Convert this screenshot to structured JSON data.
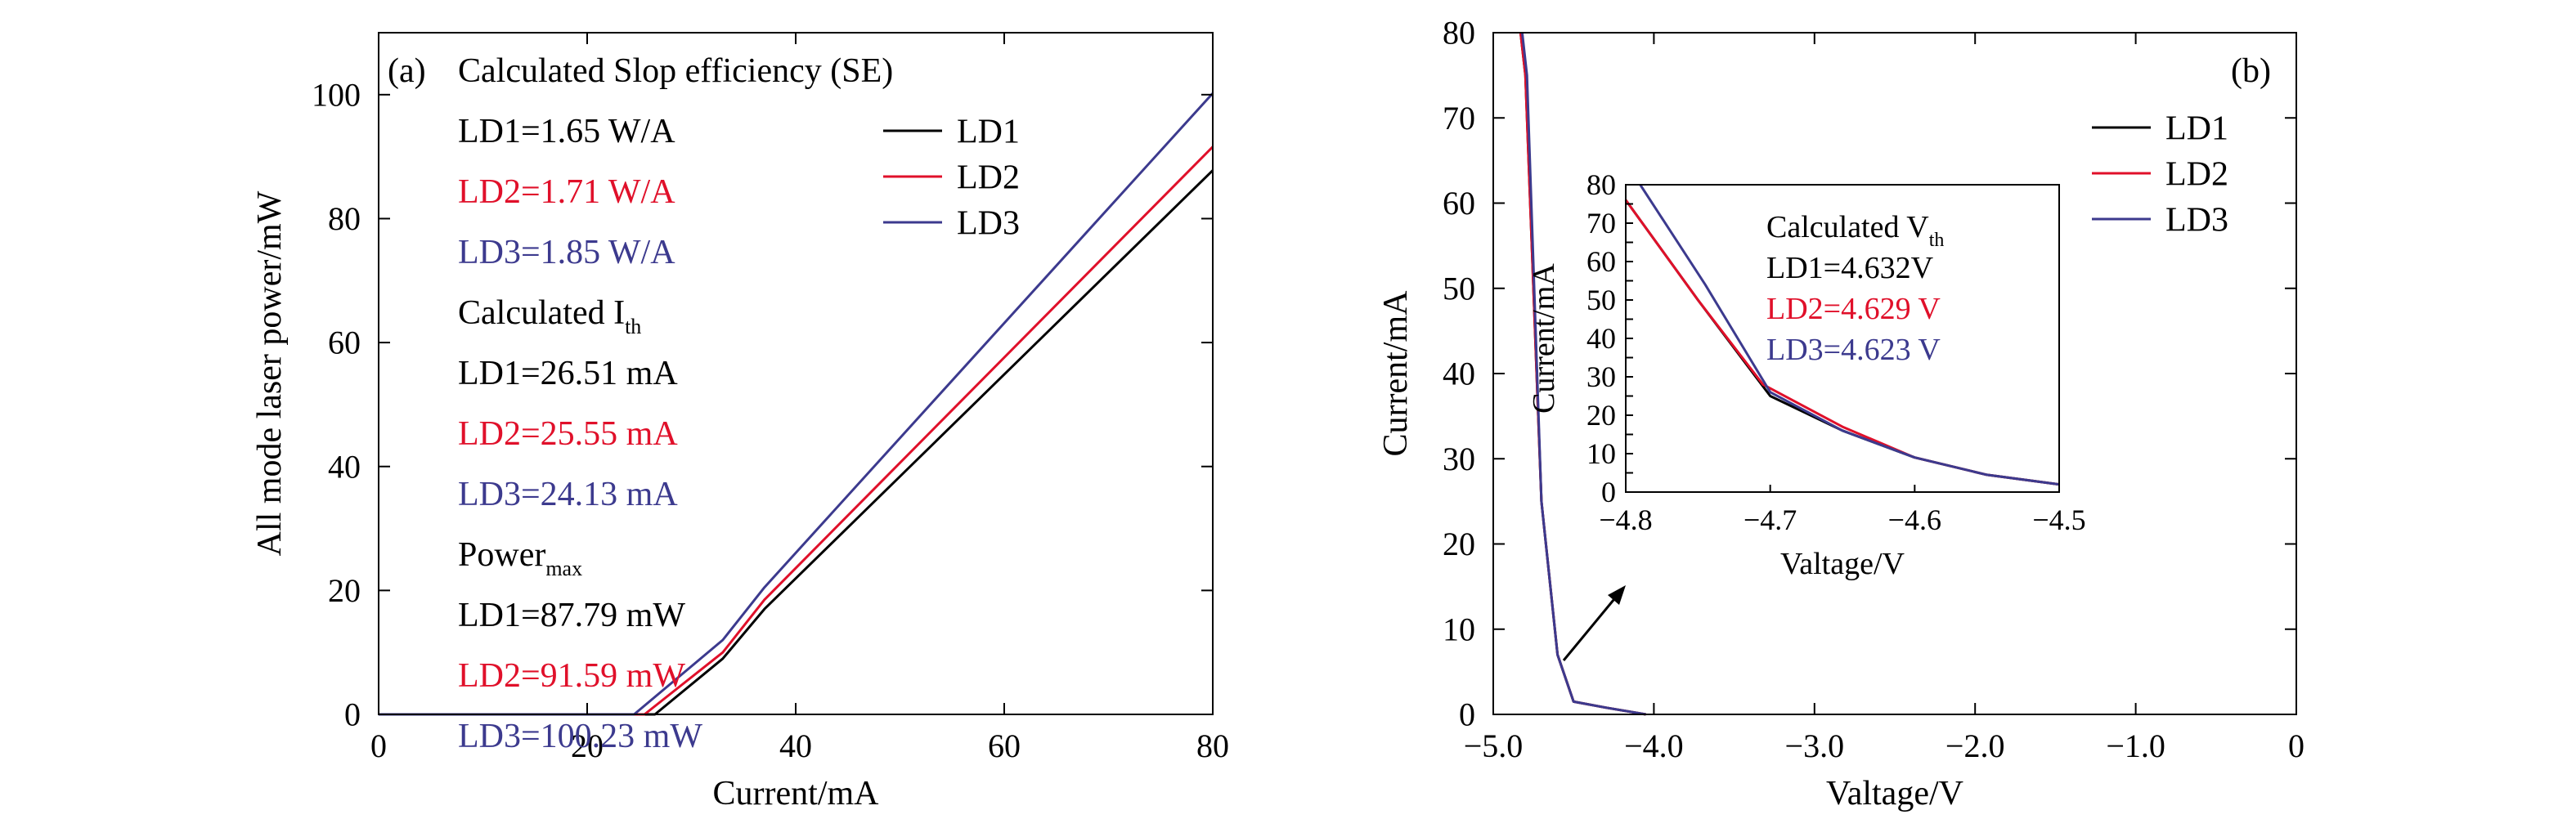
{
  "chart_data": [
    {
      "id": "a",
      "panel_label": "(a)",
      "type": "line",
      "xlabel": "Current/mA",
      "ylabel": "All mode laser power/mW",
      "xlim": [
        0,
        80
      ],
      "ylim": [
        0,
        110
      ],
      "xticks": [
        0,
        20,
        40,
        60,
        80
      ],
      "yticks": [
        0,
        20,
        40,
        60,
        80,
        100
      ],
      "grid": false,
      "legend_position": "top-right",
      "series": [
        {
          "name": "LD1",
          "color": "#000000",
          "x": [
            0,
            26.5,
            33,
            37,
            80
          ],
          "y": [
            0,
            0,
            9,
            17,
            87.79
          ]
        },
        {
          "name": "LD2",
          "color": "#e0102a",
          "x": [
            0,
            25.5,
            33,
            37,
            80
          ],
          "y": [
            0,
            0,
            10,
            18.5,
            91.59
          ]
        },
        {
          "name": "LD3",
          "color": "#3c3a8e",
          "x": [
            0,
            24.5,
            33,
            37,
            80
          ],
          "y": [
            0,
            0,
            12,
            20.5,
            100.23
          ]
        }
      ],
      "annotations": [
        {
          "text": "Calculated Slop efficiency (SE)",
          "color": "#000000"
        },
        {
          "text": "LD1=1.65 W/A",
          "color": "#000000"
        },
        {
          "text": "LD2=1.71 W/A",
          "color": "#e0102a"
        },
        {
          "text": "LD3=1.85 W/A",
          "color": "#3c3a8e"
        },
        {
          "text": "Calculated I",
          "sub": "th",
          "color": "#000000"
        },
        {
          "text": "LD1=26.51 mA",
          "color": "#000000"
        },
        {
          "text": "LD2=25.55 mA",
          "color": "#e0102a"
        },
        {
          "text": "LD3=24.13 mA",
          "color": "#3c3a8e"
        },
        {
          "text": "Power",
          "sub": "max",
          "color": "#000000"
        },
        {
          "text": "LD1=87.79 mW",
          "color": "#000000"
        },
        {
          "text": "LD2=91.59 mW",
          "color": "#e0102a"
        },
        {
          "text": "LD3=100.23 mW",
          "color": "#3c3a8e"
        }
      ]
    },
    {
      "id": "b",
      "panel_label": "(b)",
      "type": "line",
      "xlabel": "Valtage/V",
      "ylabel": "Current/mA",
      "xlim": [
        -5.0,
        0
      ],
      "ylim": [
        0,
        80
      ],
      "xticks": [
        -5.0,
        -4.0,
        -3.0,
        -2.0,
        -1.0,
        0
      ],
      "xtick_labels": [
        "−5.0",
        "−4.0",
        "−3.0",
        "−2.0",
        "−1.0",
        "0"
      ],
      "yticks": [
        0,
        10,
        20,
        30,
        40,
        50,
        60,
        70,
        80
      ],
      "grid": false,
      "legend_position": "top-right",
      "series": [
        {
          "name": "LD1",
          "color": "#000000",
          "x": [
            -4.83,
            -4.8,
            -4.7,
            -4.6,
            -4.5,
            -4.3,
            -4.05
          ],
          "y": [
            80,
            75,
            25,
            7,
            1.5,
            0.8,
            0
          ]
        },
        {
          "name": "LD2",
          "color": "#e0102a",
          "x": [
            -4.83,
            -4.8,
            -4.7,
            -4.6,
            -4.5,
            -4.3,
            -4.05
          ],
          "y": [
            80,
            75,
            25,
            7,
            1.5,
            0.8,
            0
          ]
        },
        {
          "name": "LD3",
          "color": "#3c3a8e",
          "x": [
            -4.82,
            -4.79,
            -4.7,
            -4.6,
            -4.5,
            -4.3,
            -4.05
          ],
          "y": [
            80,
            75,
            25,
            7,
            1.5,
            0.8,
            0
          ]
        }
      ],
      "inset": {
        "type": "line",
        "xlabel": "Valtage/V",
        "ylabel": "Current/mA",
        "xlim": [
          -4.8,
          -4.5
        ],
        "ylim": [
          0,
          80
        ],
        "xticks": [
          -4.8,
          -4.7,
          -4.6,
          -4.5
        ],
        "xtick_labels": [
          "−4.8",
          "−4.7",
          "−4.6",
          "−4.5"
        ],
        "yticks": [
          0,
          5,
          10,
          15,
          20,
          25,
          30,
          35,
          40,
          45,
          50,
          55,
          60,
          65,
          70,
          75,
          80
        ],
        "series": [
          {
            "name": "LD1",
            "color": "#000000",
            "x": [
              -4.8,
              -4.75,
              -4.7,
              -4.65,
              -4.6,
              -4.55,
              -4.5
            ],
            "y": [
              76,
              50,
              25,
              16,
              9,
              4.5,
              2
            ]
          },
          {
            "name": "LD2",
            "color": "#e0102a",
            "x": [
              -4.8,
              -4.75,
              -4.705,
              -4.65,
              -4.6,
              -4.55,
              -4.5
            ],
            "y": [
              76,
              50,
              28,
              17,
              9,
              4.5,
              2
            ]
          },
          {
            "name": "LD3",
            "color": "#3c3a8e",
            "x": [
              -4.79,
              -4.745,
              -4.7,
              -4.65,
              -4.6,
              -4.55,
              -4.5
            ],
            "y": [
              80,
              54,
              26,
              16,
              9,
              4.5,
              2
            ]
          }
        ],
        "annotations": [
          {
            "text": "Calculated V",
            "sub": "th",
            "color": "#000000"
          },
          {
            "text": "LD1=4.632V",
            "color": "#000000"
          },
          {
            "text": "LD2=4.629 V",
            "color": "#e0102a"
          },
          {
            "text": "LD3=4.623 V",
            "color": "#3c3a8e"
          }
        ]
      }
    }
  ]
}
